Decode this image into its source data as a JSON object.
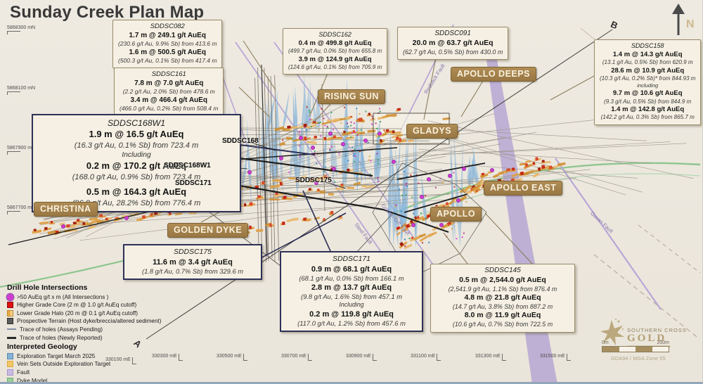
{
  "title": "Sunday Creek Plan Map",
  "compass": {
    "label": "N"
  },
  "section_line": {
    "start_label": "A",
    "end_label": "B"
  },
  "grid": {
    "northings": [
      "5868300 mN",
      "5868100 mN",
      "5867900 mN",
      "5867700 mN"
    ],
    "eastings": [
      "330300 mE",
      "330500 mE",
      "330700 mE",
      "330900 mE",
      "331100 mE",
      "331300 mE",
      "331500 mE"
    ],
    "legend_easting": "330100 mE"
  },
  "areas": [
    {
      "id": "christina",
      "label": "CHRISTINA"
    },
    {
      "id": "golden-dyke",
      "label": "GOLDEN DYKE"
    },
    {
      "id": "rising-sun",
      "label": "RISING SUN"
    },
    {
      "id": "gladys",
      "label": "GLADYS"
    },
    {
      "id": "apollo-deeps",
      "label": "APOLLO DEEPS"
    },
    {
      "id": "apollo-east",
      "label": "APOLLO EAST"
    },
    {
      "id": "apollo",
      "label": "APOLLO"
    }
  ],
  "drill_hole_labels": [
    {
      "id": "sddsc168",
      "label": "SDDSC168"
    },
    {
      "id": "sddsc168w1",
      "label": "SDDSC168W1"
    },
    {
      "id": "sddsc171",
      "label": "SDDSC171"
    },
    {
      "id": "sddsc175",
      "label": "SDDSC175"
    }
  ],
  "faults": [
    {
      "label": "Redback Fault"
    },
    {
      "label": "Steel Fault"
    },
    {
      "label": "Golden Gift Fault"
    },
    {
      "label": "Gavan Fault"
    }
  ],
  "callouts": [
    {
      "hole": "SDDSC082",
      "lines": [
        {
          "s": "b",
          "t": "1.7 m @ 249.1 g/t AuEq"
        },
        {
          "s": "i",
          "t": "(230.6 g/t Au, 9.9% Sb) from 413.6 m"
        },
        {
          "s": "b",
          "t": "1.6 m @ 500.5 g/t AuEq"
        },
        {
          "s": "i",
          "t": "(500.3 g/t Au, 0.1% Sb) from 417.4 m"
        }
      ]
    },
    {
      "hole": "SDDSC161",
      "lines": [
        {
          "s": "b",
          "t": "7.8 m @ 7.0 g/t AuEq"
        },
        {
          "s": "i",
          "t": "(2.2 g/t Au, 2.0% Sb) from 478.6 m"
        },
        {
          "s": "b",
          "t": "3.4 m @ 466.4 g/t AuEq"
        },
        {
          "s": "i",
          "t": "(466.0 g/t Au, 0.2% Sb) from 508.4 m"
        }
      ]
    },
    {
      "hole": "SDDSC168W1",
      "lines": [
        {
          "s": "b",
          "t": "1.9 m @ 16.5 g/t AuEq"
        },
        {
          "s": "i",
          "t": "(16.3 g/t Au, 0.1% Sb) from 723.4 m"
        },
        {
          "s": "inc",
          "t": "Including"
        },
        {
          "s": "b",
          "t": "0.2 m @ 170.2 g/t AuEq"
        },
        {
          "s": "i",
          "t": "(168.0 g/t Au, 0.9% Sb) from 723.4 m"
        },
        {
          "s": "sp",
          "t": ""
        },
        {
          "s": "b",
          "t": "0.5 m @ 164.3 g/t AuEq"
        },
        {
          "s": "i",
          "t": "(96.8 g/t Au, 28.2% Sb) from 776.4 m"
        }
      ]
    },
    {
      "hole": "SDDSC162",
      "lines": [
        {
          "s": "b",
          "t": "0.4 m @ 499.8 g/t AuEq"
        },
        {
          "s": "i",
          "t": "(499.7 g/t Au, 0.0% Sb) from 655.8 m"
        },
        {
          "s": "b",
          "t": "3.9 m @ 124.9 g/t AuEq"
        },
        {
          "s": "i",
          "t": "(124.6 g/t Au, 0.1% Sb) from 705.9 m"
        }
      ]
    },
    {
      "hole": "SDDSC091",
      "lines": [
        {
          "s": "b",
          "t": "20.0 m @ 63.7 g/t AuEq"
        },
        {
          "s": "i",
          "t": "(62.7 g/t Au, 0.5% Sb) from 430.0 m"
        }
      ]
    },
    {
      "hole": "SDDSC158",
      "lines": [
        {
          "s": "b",
          "t": "1.4 m @ 14.3 g/t AuEq"
        },
        {
          "s": "i",
          "t": "(13.1 g/t Au, 0.5% Sb) from 620.9 m"
        },
        {
          "s": "b",
          "t": "28.6 m @ 10.9 g/t AuEq"
        },
        {
          "s": "i",
          "t": "(10.3 g/t Au, 0.2% Sb)* from 844.93 m"
        },
        {
          "s": "inc",
          "t": "including"
        },
        {
          "s": "b",
          "t": "9.7 m @ 10.6 g/t AuEq"
        },
        {
          "s": "i",
          "t": "(9.3 g/t Au, 0.5% Sb) from 844.9 m"
        },
        {
          "s": "b",
          "t": "1.4 m @ 142.8 g/t AuEq"
        },
        {
          "s": "i",
          "t": "(142.2 g/t Au, 0.3% Sb) from 865.7 m"
        }
      ]
    },
    {
      "hole": "SDDSC175",
      "lines": [
        {
          "s": "b",
          "t": "11.6 m @ 3.4 g/t AuEq"
        },
        {
          "s": "i",
          "t": "(1.8 g/t Au, 0.7% Sb) from 329.6 m"
        }
      ]
    },
    {
      "hole": "SDDSC171",
      "lines": [
        {
          "s": "b",
          "t": "0.9 m @ 68.1 g/t AuEq"
        },
        {
          "s": "i",
          "t": "(68.1 g/t Au, 0.0% Sb) from 166.1 m"
        },
        {
          "s": "b",
          "t": "2.8 m @ 13.7 g/t AuEq"
        },
        {
          "s": "i",
          "t": "(9.8 g/t Au, 1.6% Sb) from 457.1 m"
        },
        {
          "s": "inc",
          "t": "Including"
        },
        {
          "s": "b",
          "t": "0.2 m @ 119.8 g/t AuEq"
        },
        {
          "s": "i",
          "t": "(117.0 g/t Au, 1.2% Sb) from 457.6 m"
        }
      ]
    },
    {
      "hole": "SDDSC145",
      "lines": [
        {
          "s": "b",
          "t": "0.5 m @ 2,544.0 g/t AuEq"
        },
        {
          "s": "i",
          "t": "(2,541.9 g/t Au, 1.1% Sb) from 876.4 m"
        },
        {
          "s": "b",
          "t": "4.8 m @ 21.8 g/t AuEq"
        },
        {
          "s": "i",
          "t": "(14.7 g/t Au, 3.8% Sb) from 887.2 m"
        },
        {
          "s": "b",
          "t": "8.0 m @ 11.9 g/t AuEq"
        },
        {
          "s": "i",
          "t": "(10.6 g/t Au, 0.7% Sb) from 722.5 m"
        }
      ]
    }
  ],
  "legend": {
    "sections": [
      {
        "heading": "Drill Hole Intersections",
        "items": [
          {
            "swatch": "magenta-dot",
            "label": ">50 AuEq g/t x m (All Intersections )"
          },
          {
            "swatch": "red-square",
            "label": "Higher Grade Core (2 m @ 1.0 g/t AuEq cutoff)"
          },
          {
            "swatch": "orange-square",
            "label": "Lower Grade Halo (20 m @ 0.1 g/t AuEq cutoff)"
          },
          {
            "swatch": "gray-square",
            "label": "Prospective Terrain (Host dyke/breccia/altered sediment)"
          },
          {
            "swatch": "thin-line",
            "label": "Trace of holes (Assays Pending)"
          },
          {
            "swatch": "thick-line",
            "label": "Trace of holes (Newly Reported)"
          }
        ]
      },
      {
        "heading": "Interpreted Geology",
        "items": [
          {
            "swatch": "blue-square",
            "label": "Exploration Target March 2025"
          },
          {
            "swatch": "amber-square",
            "label": "Vein Sets Outside Exploration Target"
          },
          {
            "swatch": "purple-square",
            "label": "Fault"
          },
          {
            "swatch": "green-square",
            "label": "Dyke Model"
          }
        ]
      }
    ]
  },
  "footer": {
    "logo_line1": "SOUTHERN CROSS",
    "logo_line2": "GOLD",
    "scale_start": "0m",
    "scale_end": "200m",
    "datum": "GDA94 / MGA Zone 55"
  },
  "colors": {
    "accent_tan": "#a5854e",
    "target_blue": "#85b3d8",
    "fault_purple": "#b7a7d6",
    "dyke_green": "#8fc58f",
    "high_grade_red": "#c62817",
    "halo_orange": "#dfa045",
    "intersection_magenta": "#d23bd2",
    "navy_box_border": "#2e3057"
  }
}
